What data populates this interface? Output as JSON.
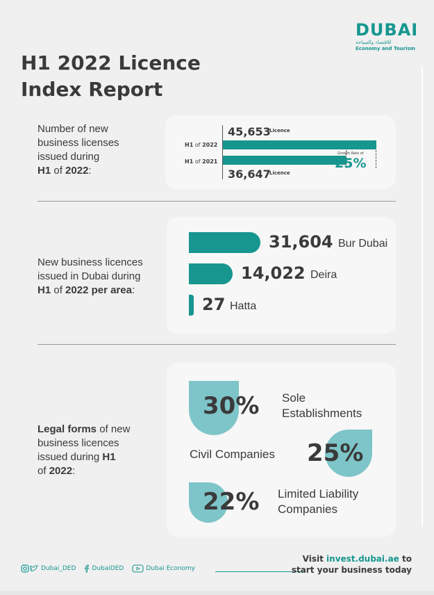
{
  "brand": {
    "logo_text": "DUBAI",
    "logo_arabic": "للاقتصاد والسياحة",
    "logo_subtitle": "Economy and Tourism"
  },
  "title": {
    "line1": "H1 2022 Licence",
    "line2": "Index Report"
  },
  "section1": {
    "desc_line1": "Number of new",
    "desc_line2": "business licenses",
    "desc_line3": "issued during",
    "desc_h1": "H1",
    "desc_of": "of",
    "desc_year": "2022",
    "desc_colon": ":",
    "bars": [
      {
        "label_h": "H1",
        "label_of": "of",
        "label_year": "2022",
        "value": "45,653",
        "unit": "Licence",
        "amount": 45653
      },
      {
        "label_h": "H1",
        "label_of": "of",
        "label_year": "2021",
        "value": "36,647",
        "unit": "Licence",
        "amount": 36647
      }
    ],
    "growth_title": "Growth Rate of",
    "growth_value": "25%"
  },
  "section2": {
    "desc_line1": "New business licences",
    "desc_line2": "issued in Dubai during",
    "desc_h1": "H1",
    "desc_of": "of",
    "desc_rest": "2022 per area",
    "desc_colon": ":",
    "areas": [
      {
        "value": "31,604",
        "name": "Bur Dubai",
        "amount": 31604
      },
      {
        "value": "14,022",
        "name": "Deira",
        "amount": 14022
      },
      {
        "value": "27",
        "name": "Hatta",
        "amount": 27
      }
    ]
  },
  "section3": {
    "desc_bold1": "Legal forms",
    "desc_rest1": "of new",
    "desc_line2": "business licences",
    "desc_line3": "issued during",
    "desc_h1": "H1",
    "desc_of": "of",
    "desc_year": "2022",
    "desc_colon": ":",
    "forms": [
      {
        "pct": "30%",
        "name_line1": "Sole",
        "name_line2": "Establishments"
      },
      {
        "pct": "25%",
        "name_line1": "Civil Companies",
        "name_line2": ""
      },
      {
        "pct": "22%",
        "name_line1": "Limited Liability",
        "name_line2": "Companies"
      }
    ]
  },
  "footer": {
    "social": [
      {
        "icon": "instagram-twitter-icon",
        "handle": "Dubai_DED"
      },
      {
        "icon": "facebook-icon",
        "handle": "DubaiDED"
      },
      {
        "icon": "youtube-icon",
        "handle": "Dubai Economy"
      }
    ],
    "cta_prefix": "Visit",
    "cta_link": "invest.dubai.ae",
    "cta_suffix": "to",
    "cta_line2": "start your business today"
  },
  "colors": {
    "accent": "#16968f",
    "accent_light": "#7ec5c9",
    "text": "#3a3a3a",
    "background": "#f0f0f0"
  }
}
